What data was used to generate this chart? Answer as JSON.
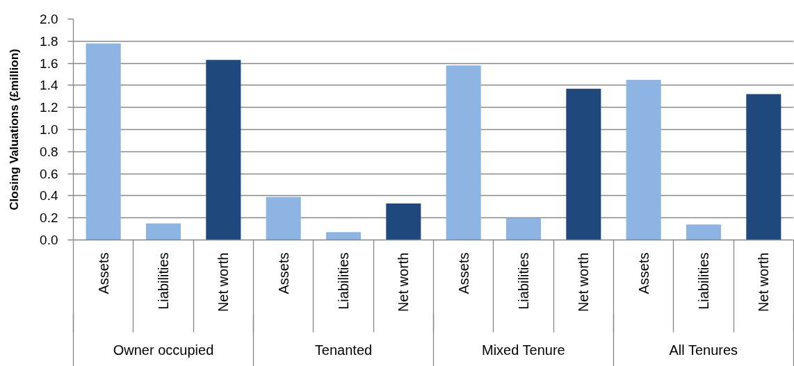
{
  "chart_data": {
    "type": "bar",
    "ylabel": "Closing Valuations (£million)",
    "categories": [
      "Assets",
      "Liabilities",
      "Net worth",
      "Assets",
      "Liabilities",
      "Net worth",
      "Assets",
      "Liabilities",
      "Net worth",
      "Assets",
      "Liabilities",
      "Net worth"
    ],
    "values": [
      1.78,
      0.15,
      1.63,
      0.39,
      0.07,
      0.33,
      1.58,
      0.2,
      1.37,
      1.45,
      0.14,
      1.32
    ],
    "colors": [
      "#8eb4e3",
      "#8eb4e3",
      "#1f497d",
      "#8eb4e3",
      "#8eb4e3",
      "#1f497d",
      "#8eb4e3",
      "#8eb4e3",
      "#1f497d",
      "#8eb4e3",
      "#8eb4e3",
      "#1f497d"
    ],
    "annotations": [
      "Owner occupied",
      "Tenanted",
      "Mixed Tenure",
      "All Tenures"
    ],
    "ylim": [
      0,
      2.0
    ],
    "yticks": [
      {
        "value": 0,
        "label": "0.0"
      },
      0.2,
      0.4,
      0.6,
      0.8,
      {
        "value": 1,
        "label": "1.0"
      },
      1.2,
      1.4,
      1.6,
      1.8,
      {
        "value": 2,
        "label": "2.0"
      }
    ],
    "grid": "y"
  }
}
